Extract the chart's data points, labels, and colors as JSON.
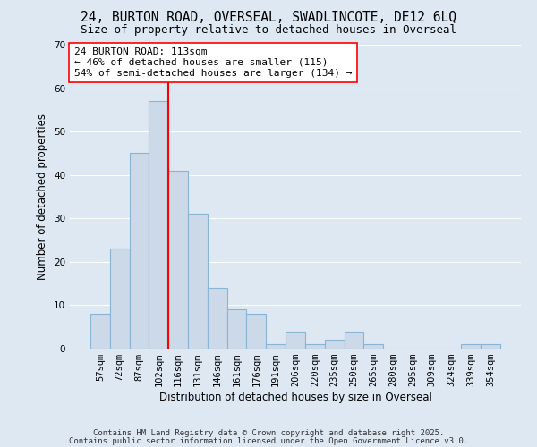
{
  "title1": "24, BURTON ROAD, OVERSEAL, SWADLINCOTE, DE12 6LQ",
  "title2": "Size of property relative to detached houses in Overseal",
  "xlabel": "Distribution of detached houses by size in Overseal",
  "ylabel": "Number of detached properties",
  "bar_labels": [
    "57sqm",
    "72sqm",
    "87sqm",
    "102sqm",
    "116sqm",
    "131sqm",
    "146sqm",
    "161sqm",
    "176sqm",
    "191sqm",
    "206sqm",
    "220sqm",
    "235sqm",
    "250sqm",
    "265sqm",
    "280sqm",
    "295sqm",
    "309sqm",
    "324sqm",
    "339sqm",
    "354sqm"
  ],
  "bar_values": [
    8,
    23,
    45,
    57,
    41,
    31,
    14,
    9,
    8,
    1,
    4,
    1,
    2,
    4,
    1,
    0,
    0,
    0,
    0,
    1,
    1
  ],
  "bar_color": "#ccd9e8",
  "bar_edge_color": "#8ab4d4",
  "annotation_text": "24 BURTON ROAD: 113sqm\n← 46% of detached houses are smaller (115)\n54% of semi-detached houses are larger (134) →",
  "ylim": [
    0,
    70
  ],
  "yticks": [
    0,
    10,
    20,
    30,
    40,
    50,
    60,
    70
  ],
  "footer1": "Contains HM Land Registry data © Crown copyright and database right 2025.",
  "footer2": "Contains public sector information licensed under the Open Government Licence v3.0.",
  "bg_color": "#dde8f3",
  "grid_color": "#ffffff",
  "title_fontsize": 10.5,
  "subtitle_fontsize": 9,
  "annotation_fontsize": 8,
  "axis_label_fontsize": 8.5,
  "tick_fontsize": 7.5,
  "footer_fontsize": 6.5
}
